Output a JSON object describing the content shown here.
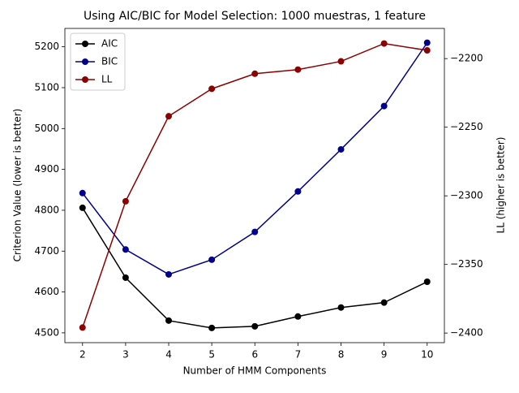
{
  "chart_data": {
    "type": "line",
    "title": "Using AIC/BIC for Model Selection: 1000 muestras, 1 feature",
    "x_label": "Number of HMM Components",
    "y_label": "Criterion Value (lower is better)",
    "y2_label": "LL (higher is better)",
    "x": [
      2,
      3,
      4,
      5,
      6,
      7,
      8,
      9,
      10
    ],
    "xlim": [
      1.59,
      10.4
    ],
    "xticks": [
      2,
      3,
      4,
      5,
      6,
      7,
      8,
      9,
      10
    ],
    "ylim": [
      4476,
      5245
    ],
    "yticks": [
      4500,
      4600,
      4700,
      4800,
      4900,
      5000,
      5100,
      5200
    ],
    "y2lim": [
      -2407,
      -2178
    ],
    "y2ticks": [
      {
        "value": -2400,
        "label": "−2400"
      },
      {
        "value": -2350,
        "label": "−2350"
      },
      {
        "value": -2300,
        "label": "−2300"
      },
      {
        "value": -2250,
        "label": "−2250"
      },
      {
        "value": -2200,
        "label": "−2200"
      }
    ],
    "legend": "upper left",
    "series": [
      {
        "name": "AIC",
        "color": "#000000",
        "values": [
          4806,
          4635,
          4530,
          4512,
          4516,
          4540,
          4562,
          4574,
          4625
        ]
      },
      {
        "name": "BIC",
        "color": "#00008b",
        "values": [
          4842,
          4704,
          4643,
          4679,
          4747,
          4846,
          4949,
          5055,
          5210
        ]
      },
      {
        "name": "LL",
        "color": "#8b0000",
        "axis": "y2",
        "values": [
          -2396,
          -2304,
          -2242,
          -2222,
          -2211,
          -2208,
          -2202,
          -2189,
          -2194
        ]
      }
    ]
  }
}
